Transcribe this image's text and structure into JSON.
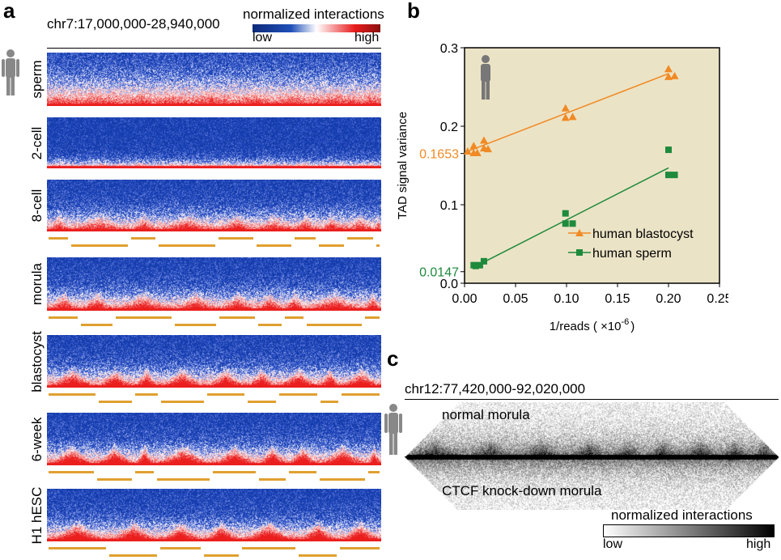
{
  "panel_a": {
    "label": "a",
    "region": "chr7:17,000,000-28,940,000",
    "colorbar": {
      "title": "normalized interactions",
      "low": "low",
      "high": "high",
      "colors": [
        "#0d2a7a",
        "#1f4fb8",
        "#ffffff",
        "#e81c1c",
        "#8a1010"
      ]
    },
    "rows": [
      "sperm",
      "2-cell",
      "8-cell",
      "morula",
      "blastocyst",
      "6-week",
      "H1 hESC"
    ],
    "tad_color": "#e0a030"
  },
  "panel_b": {
    "label": "b",
    "intercept_labels": {
      "blastocyst": "0.1653",
      "sperm": "0.0147"
    }
  },
  "chart_data": {
    "type": "scatter",
    "xlabel": "1/reads ( ×10",
    "xlabel_exp": "-6",
    "xlabel_end": ")",
    "ylabel": "TAD signal variance",
    "xlim": [
      0,
      0.25
    ],
    "ylim": [
      0,
      0.3
    ],
    "xticks": [
      "0.00",
      "0.05",
      "0.10",
      "0.15",
      "0.20",
      "0.25"
    ],
    "yticks": [
      "0.0",
      "0.1",
      "0.2",
      "0.3"
    ],
    "background": "#ebe3c6",
    "legend": "bottom-right",
    "series": [
      {
        "name": "human blastocyst",
        "color": "#f08a24",
        "marker": "triangle",
        "x": [
          0.003,
          0.009,
          0.009,
          0.0125,
          0.019,
          0.019,
          0.023,
          0.099,
          0.099,
          0.106,
          0.2,
          0.2,
          0.206
        ],
        "y": [
          0.168,
          0.175,
          0.166,
          0.166,
          0.182,
          0.172,
          0.171,
          0.223,
          0.211,
          0.212,
          0.273,
          0.263,
          0.264
        ],
        "fit": {
          "x": [
            0.003,
            0.2
          ],
          "y": [
            0.168,
            0.267
          ]
        }
      },
      {
        "name": "human sperm",
        "color": "#1e8a3c",
        "marker": "square",
        "x": [
          0.009,
          0.011,
          0.015,
          0.019,
          0.099,
          0.099,
          0.106,
          0.2,
          0.2,
          0.206
        ],
        "y": [
          0.023,
          0.022,
          0.023,
          0.028,
          0.089,
          0.076,
          0.076,
          0.17,
          0.138,
          0.138
        ],
        "fit": {
          "x": [
            0.019,
            0.2
          ],
          "y": [
            0.027,
            0.147
          ]
        }
      }
    ]
  },
  "panel_c": {
    "label": "c",
    "region": "chr12:77,420,000-92,020,000",
    "top": "normal morula",
    "bottom": "CTCF knock-down morula",
    "colorbar": {
      "title": "normalized interactions",
      "low": "low",
      "high": "high"
    }
  }
}
